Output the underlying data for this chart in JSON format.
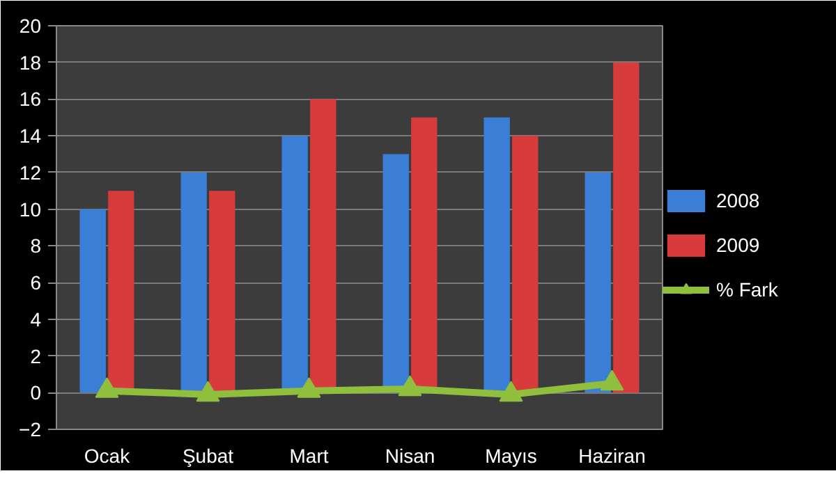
{
  "chart_data": {
    "type": "bar",
    "categories": [
      "Ocak",
      "Şubat",
      "Mart",
      "Nisan",
      "Mayıs",
      "Haziran"
    ],
    "series": [
      {
        "name": "2008",
        "color": "#3a7fd5",
        "values": [
          10,
          12,
          14,
          13,
          15,
          12
        ]
      },
      {
        "name": "2009",
        "color": "#d83b3b",
        "values": [
          11,
          11,
          16,
          15,
          14,
          18
        ]
      },
      {
        "name": "% Fark",
        "color": "#8fbf3c",
        "type": "line",
        "marker": "triangle",
        "values": [
          0.1,
          -0.1,
          0.1,
          0.2,
          -0.1,
          0.5
        ]
      }
    ],
    "ylim": [
      -2,
      20
    ],
    "yticks": [
      -2,
      0,
      2,
      4,
      6,
      8,
      10,
      12,
      14,
      16,
      18,
      20
    ],
    "grid": "y",
    "legend": "right"
  }
}
